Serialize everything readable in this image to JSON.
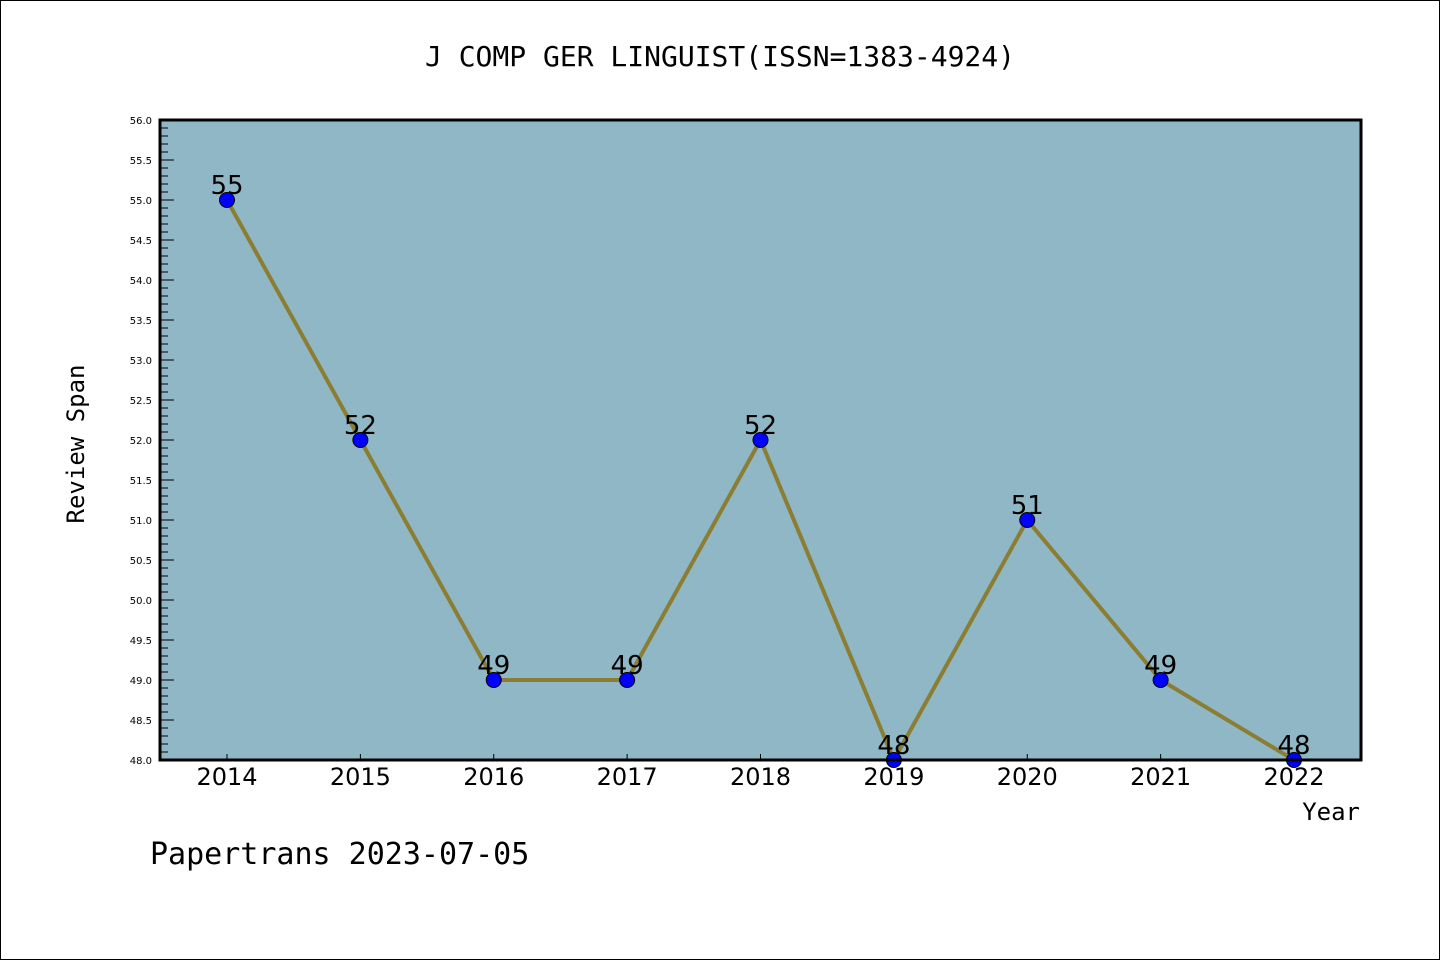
{
  "chart_data": {
    "type": "line",
    "title": "J COMP GER LINGUIST(ISSN=1383-4924)",
    "xlabel": "Year",
    "ylabel": "Review Span",
    "x": [
      "2014",
      "2015",
      "2016",
      "2017",
      "2018",
      "2019",
      "2020",
      "2021",
      "2022"
    ],
    "values": [
      55,
      52,
      49,
      49,
      52,
      48,
      51,
      49,
      48
    ],
    "ylim": [
      48.0,
      56.0
    ],
    "yticks": [
      "48.0",
      "48.5",
      "49.0",
      "49.5",
      "50.0",
      "50.5",
      "51.0",
      "51.5",
      "52.0",
      "52.5",
      "53.0",
      "53.5",
      "54.0",
      "54.5",
      "55.0",
      "55.5",
      "56.0"
    ],
    "grid": false,
    "colors": {
      "background": "#8fb7c5",
      "line": "#8b7d32",
      "marker": "#0000ff"
    }
  },
  "footer": "Papertrans 2023-07-05"
}
